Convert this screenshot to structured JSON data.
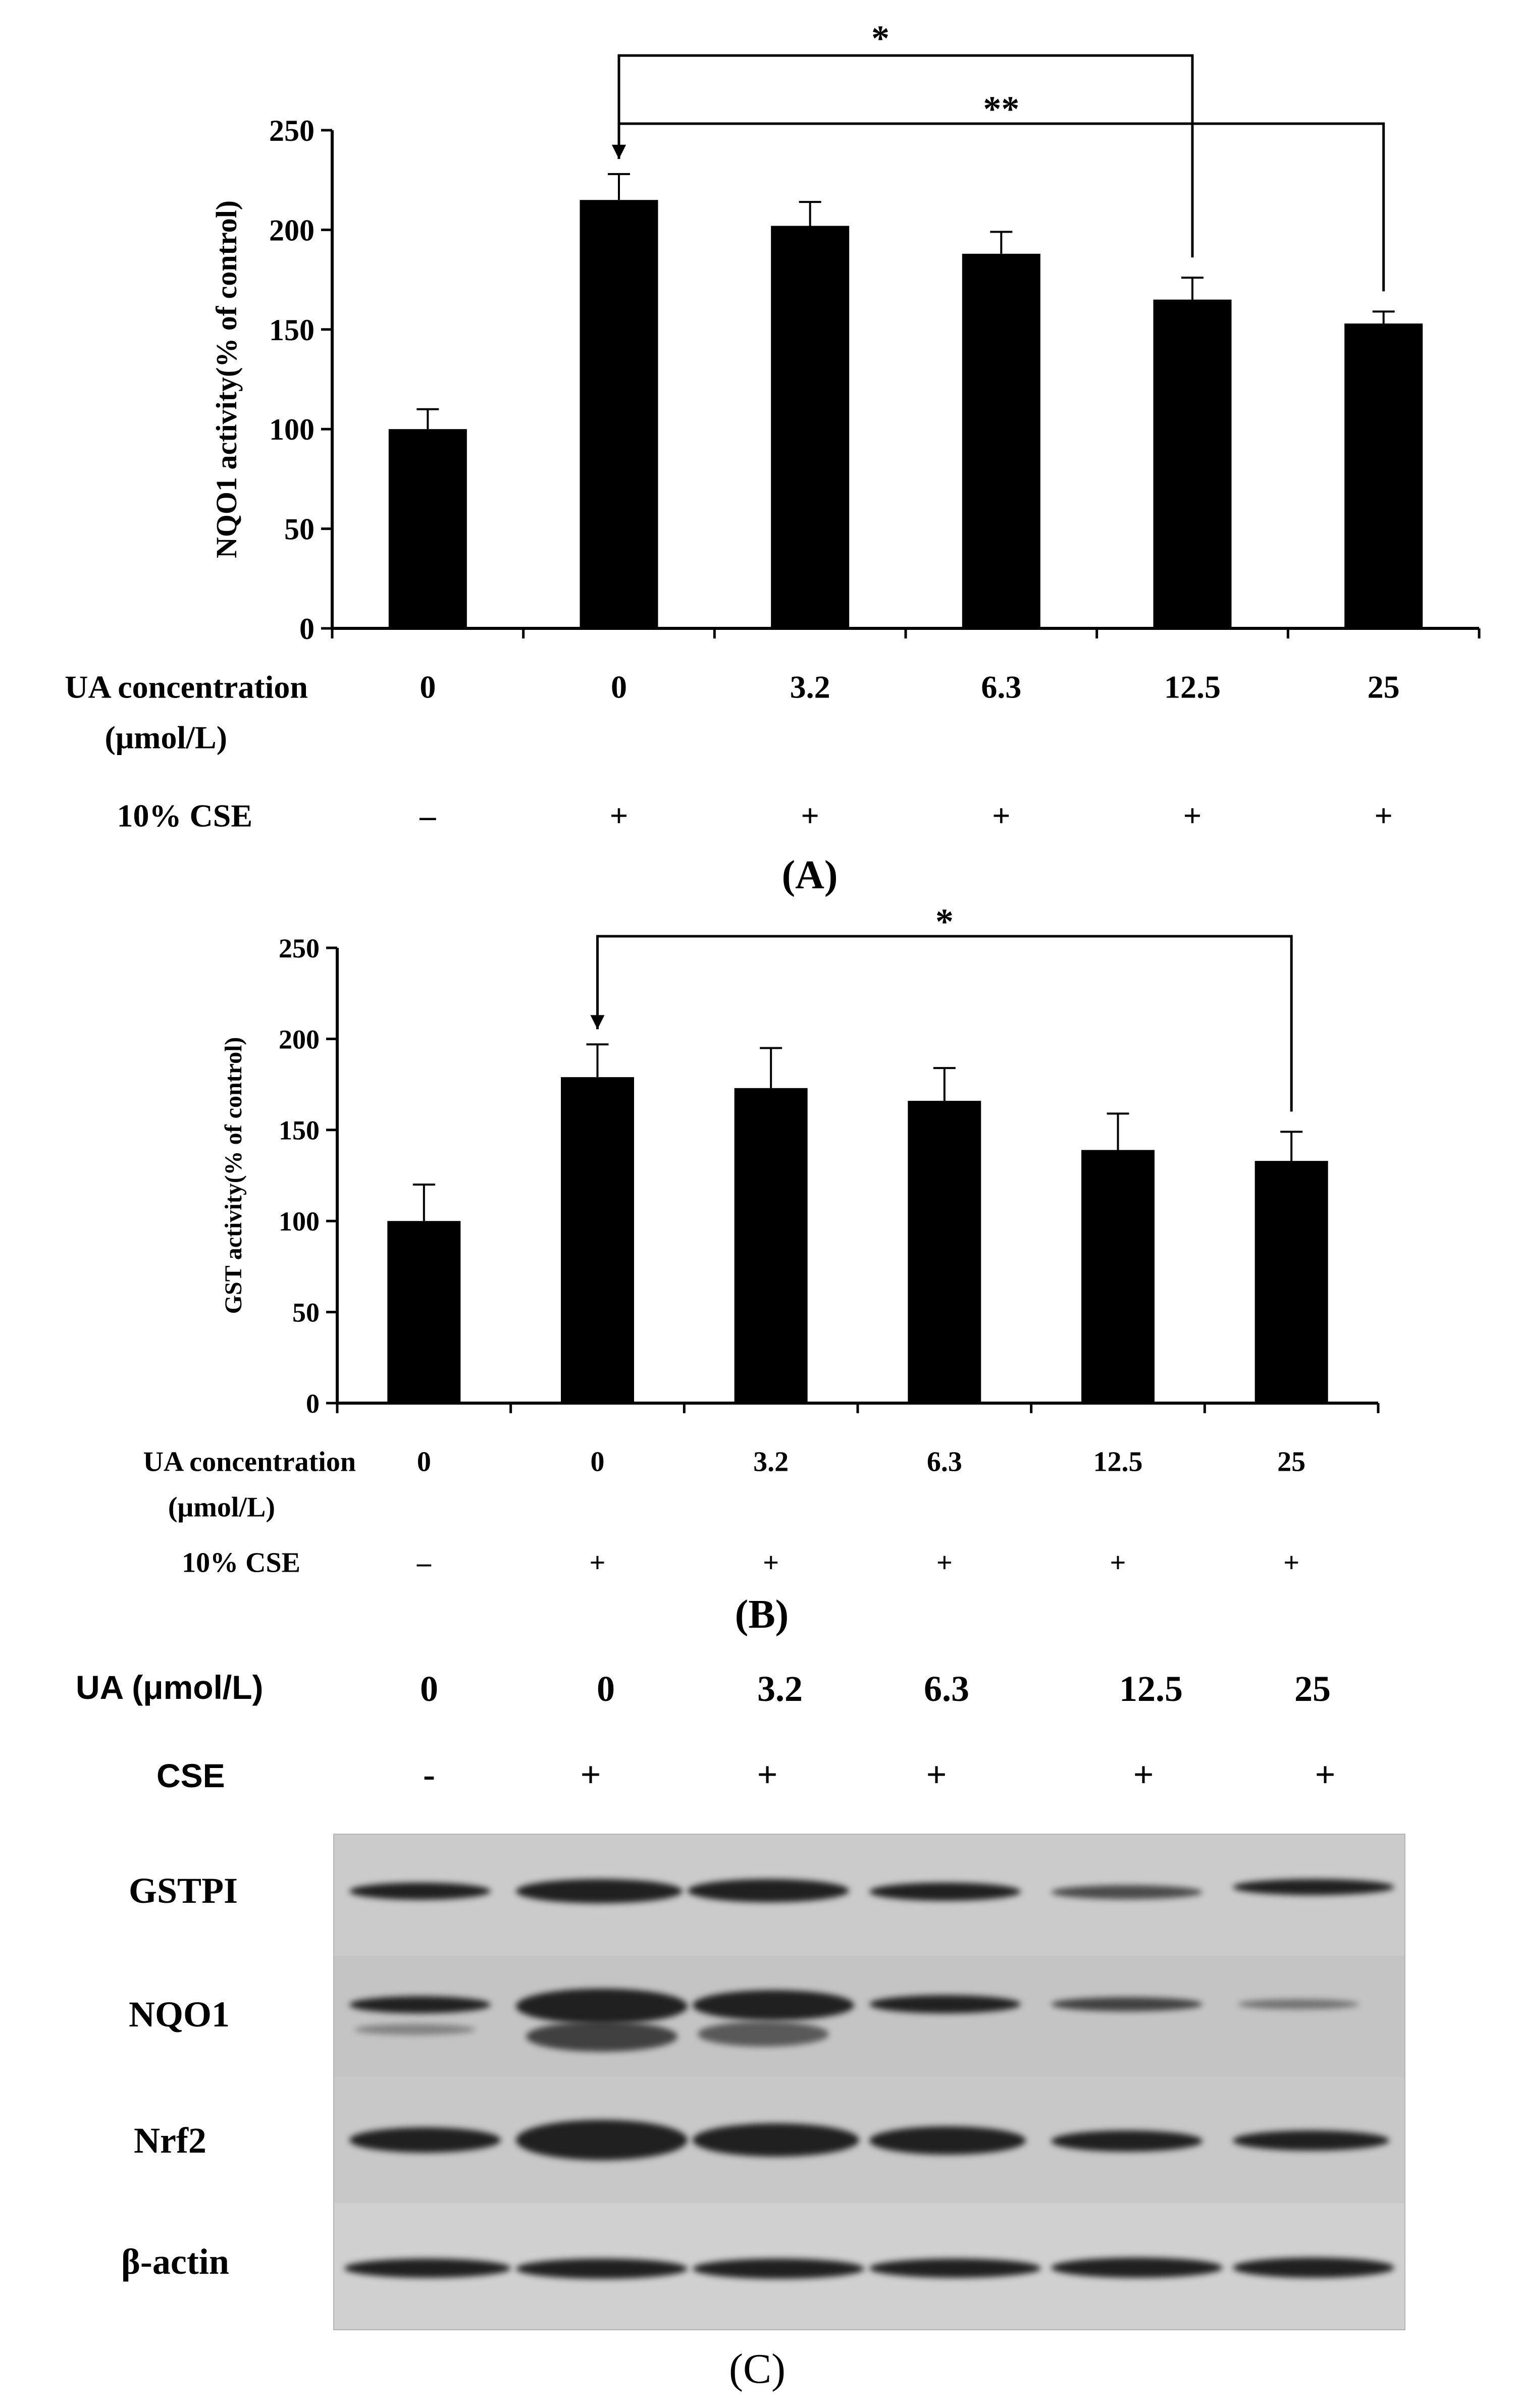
{
  "chart_data": [
    {
      "type": "bar",
      "panel_label": "(A)",
      "ylabel": "NQO1 activity(% of control)",
      "ylim": [
        0,
        250
      ],
      "yticks": [
        "0",
        "50",
        "100",
        "150",
        "200",
        "250"
      ],
      "categories": [
        "0",
        "0",
        "3.2",
        "6.3",
        "12.5",
        "25"
      ],
      "values": [
        100,
        215,
        202,
        188,
        165,
        153
      ],
      "errors": [
        10,
        13,
        12,
        11,
        11,
        6
      ],
      "row_labels": {
        "concentration": "UA concentration",
        "unit": "(μmol/L)",
        "cse": "10% CSE"
      },
      "cse_signs": [
        "–",
        "+",
        "+",
        "+",
        "+",
        "+"
      ],
      "significance": [
        {
          "label": "*",
          "from": 1,
          "to": 4
        },
        {
          "label": "**",
          "from": 1,
          "to": 5
        }
      ]
    },
    {
      "type": "bar",
      "panel_label": "(B)",
      "ylabel": "GST activity(% of control)",
      "ylim": [
        0,
        250
      ],
      "yticks": [
        "0",
        "50",
        "100",
        "150",
        "200",
        "250"
      ],
      "categories": [
        "0",
        "0",
        "3.2",
        "6.3",
        "12.5",
        "25"
      ],
      "values": [
        100,
        179,
        173,
        166,
        139,
        133
      ],
      "errors": [
        20,
        18,
        22,
        18,
        20,
        16
      ],
      "row_labels": {
        "concentration": "UA concentration",
        "unit": "(μmol/L)",
        "cse": "10% CSE"
      },
      "cse_signs": [
        "–",
        "+",
        "+",
        "+",
        "+",
        "+"
      ],
      "significance": [
        {
          "label": "*",
          "from": 1,
          "to": 5
        }
      ]
    }
  ],
  "panel_c": {
    "panel_label": "(C)",
    "ua_label": "UA (μmol/L)",
    "cse_label": "CSE",
    "lanes": [
      "0",
      "0",
      "3.2",
      "6.3",
      "12.5",
      "25"
    ],
    "cse_signs": [
      "-",
      "+",
      "+",
      "+",
      "+",
      "+"
    ],
    "rows": [
      "GSTPI",
      "NQO1",
      "Nrf2",
      "β-actin"
    ]
  }
}
